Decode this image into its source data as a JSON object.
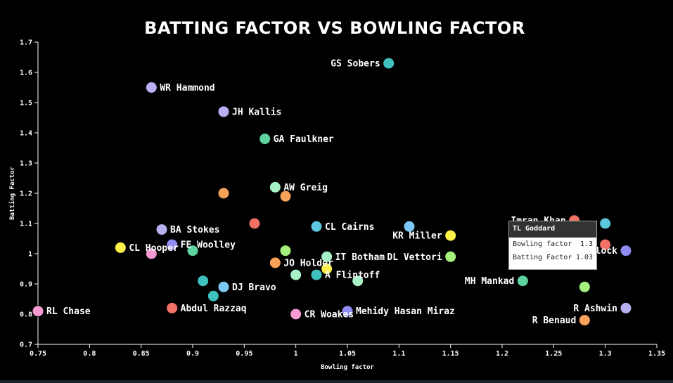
{
  "chart_data": {
    "type": "scatter",
    "title": "BATTING FACTOR VS BOWLING FACTOR",
    "xlabel": "Bowling factor",
    "ylabel": "Batting Factor",
    "xlim": [
      0.75,
      1.35
    ],
    "ylim": [
      0.7,
      1.7
    ],
    "xticks": [
      "0.75",
      "0.8",
      "0.85",
      "0.9",
      "0.95",
      "1",
      "1.05",
      "1.1",
      "1.15",
      "1.2",
      "1.25",
      "1.3",
      "1.35"
    ],
    "yticks": [
      "0.7",
      "0.8",
      "0.9",
      "1",
      "1.1",
      "1.2",
      "1.3",
      "1.4",
      "1.5",
      "1.6",
      "1.7"
    ],
    "points": [
      {
        "label": "GS Sobers",
        "x": 1.09,
        "y": 1.63,
        "color": "#3fc1c0",
        "anchor": "end"
      },
      {
        "label": "WR Hammond",
        "x": 0.86,
        "y": 1.55,
        "color": "#b7b1f2",
        "anchor": "start"
      },
      {
        "label": "JH Kallis",
        "x": 0.93,
        "y": 1.47,
        "color": "#b7b1f2",
        "anchor": "start"
      },
      {
        "label": "GA Faulkner",
        "x": 0.97,
        "y": 1.38,
        "color": "#5dd39e",
        "anchor": "start"
      },
      {
        "label": "AW Greig",
        "x": 0.98,
        "y": 1.22,
        "color": "#a8f0c6",
        "anchor": "start"
      },
      {
        "label": "",
        "x": 0.93,
        "y": 1.2,
        "color": "#f7a258",
        "anchor": "start"
      },
      {
        "label": "",
        "x": 0.99,
        "y": 1.19,
        "color": "#f7a258",
        "anchor": "start"
      },
      {
        "label": "",
        "x": 0.96,
        "y": 1.1,
        "color": "#f27166",
        "anchor": "start"
      },
      {
        "label": "CL Cairns",
        "x": 1.02,
        "y": 1.09,
        "color": "#5bc8e0",
        "anchor": "start"
      },
      {
        "label": "",
        "x": 1.11,
        "y": 1.09,
        "color": "#7cc8f7",
        "anchor": "start"
      },
      {
        "label": "KR Miller",
        "x": 1.15,
        "y": 1.06,
        "color": "#fff04a",
        "anchor": "end"
      },
      {
        "label": "BA Stokes",
        "x": 0.87,
        "y": 1.08,
        "color": "#b7b1f2",
        "anchor": "start"
      },
      {
        "label": "FE Woolley",
        "x": 0.88,
        "y": 1.03,
        "color": "#8f8cf2",
        "anchor": "start"
      },
      {
        "label": "",
        "x": 0.9,
        "y": 1.01,
        "color": "#5dd39e",
        "anchor": "start"
      },
      {
        "label": "CL Hooper",
        "x": 0.83,
        "y": 1.02,
        "color": "#fff04a",
        "anchor": "start"
      },
      {
        "label": "",
        "x": 0.86,
        "y": 1.0,
        "color": "#f79ad3",
        "anchor": "start"
      },
      {
        "label": "",
        "x": 0.99,
        "y": 1.01,
        "color": "#a6f07c",
        "anchor": "start"
      },
      {
        "label": "IT Botham",
        "x": 1.03,
        "y": 0.99,
        "color": "#a8f0c6",
        "anchor": "start"
      },
      {
        "label": "DL Vettori",
        "x": 1.15,
        "y": 0.99,
        "color": "#a6f07c",
        "anchor": "end"
      },
      {
        "label": "JO Holder",
        "x": 0.98,
        "y": 0.97,
        "color": "#f7a258",
        "anchor": "start"
      },
      {
        "label": "",
        "x": 1.03,
        "y": 0.95,
        "color": "#fff04a",
        "anchor": "start"
      },
      {
        "label": "A Flintoff",
        "x": 1.02,
        "y": 0.93,
        "color": "#3fc1c0",
        "anchor": "start"
      },
      {
        "label": "",
        "x": 1.0,
        "y": 0.93,
        "color": "#a8f0c6",
        "anchor": "start"
      },
      {
        "label": "",
        "x": 1.06,
        "y": 0.91,
        "color": "#a8f0c6",
        "anchor": "start"
      },
      {
        "label": "",
        "x": 0.91,
        "y": 0.91,
        "color": "#3fc1c0",
        "anchor": "start"
      },
      {
        "label": "DJ Bravo",
        "x": 0.93,
        "y": 0.89,
        "color": "#7cc8f7",
        "anchor": "start"
      },
      {
        "label": "",
        "x": 0.92,
        "y": 0.86,
        "color": "#3fc1c0",
        "anchor": "start"
      },
      {
        "label": "Abdul Razzaq",
        "x": 0.88,
        "y": 0.82,
        "color": "#f27166",
        "anchor": "start"
      },
      {
        "label": "CR Woakes",
        "x": 1.0,
        "y": 0.8,
        "color": "#f79ad3",
        "anchor": "start"
      },
      {
        "label": "Mehidy Hasan Miraz",
        "x": 1.05,
        "y": 0.81,
        "color": "#8f8cf2",
        "anchor": "start"
      },
      {
        "label": "RL Chase",
        "x": 0.75,
        "y": 0.81,
        "color": "#f79ad3",
        "anchor": "start"
      },
      {
        "label": "MH Mankad",
        "x": 1.22,
        "y": 0.91,
        "color": "#5dd39e",
        "anchor": "end"
      },
      {
        "label": "",
        "x": 1.28,
        "y": 0.89,
        "color": "#a6f07c",
        "anchor": "start"
      },
      {
        "label": "R Ashwin",
        "x": 1.32,
        "y": 0.82,
        "color": "#b7b1f2",
        "anchor": "end"
      },
      {
        "label": "R Benaud",
        "x": 1.28,
        "y": 0.78,
        "color": "#f7a258",
        "anchor": "end"
      },
      {
        "label": "Imran Khan",
        "x": 1.27,
        "y": 1.11,
        "color": "#f27166",
        "anchor": "end"
      },
      {
        "label": "",
        "x": 1.3,
        "y": 1.1,
        "color": "#5bc8e0",
        "anchor": "start"
      },
      {
        "label": "",
        "x": 1.3,
        "y": 1.03,
        "color": "#f27166",
        "anchor": "start"
      },
      {
        "label": "SM Pollock",
        "x": 1.32,
        "y": 1.01,
        "color": "#8f8cf2",
        "anchor": "end"
      }
    ]
  },
  "tooltip": {
    "name": "TL Goddard",
    "bowling_label": "Bowling factor",
    "bowling_value": "1.3",
    "batting_label": "Batting Factor",
    "batting_value": "1.03"
  }
}
